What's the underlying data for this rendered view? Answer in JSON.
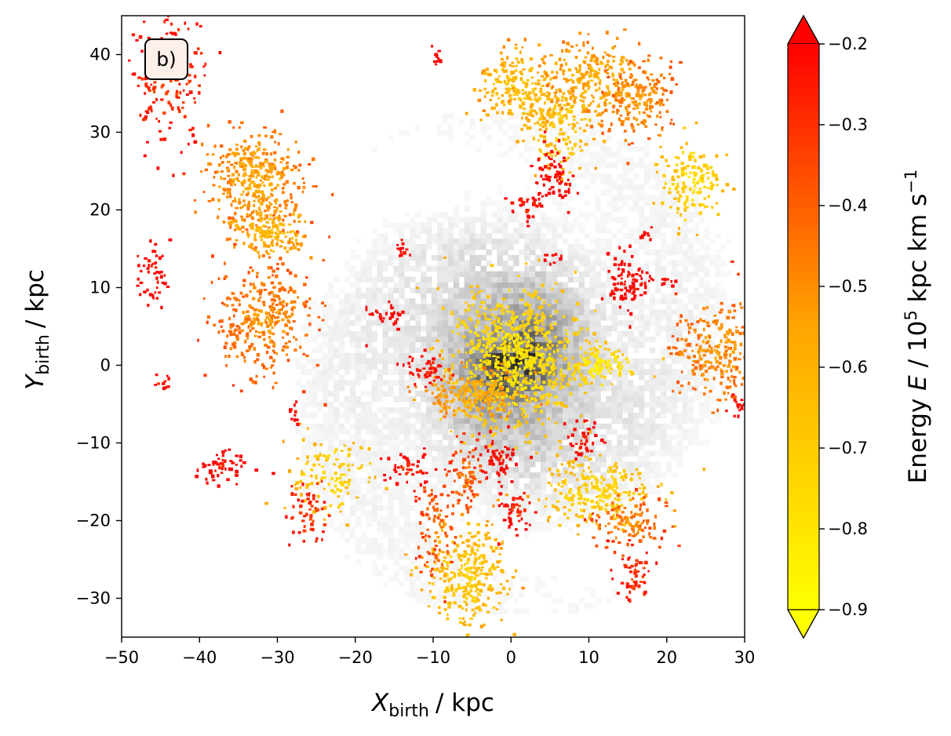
{
  "chart_data": {
    "type": "heatmap",
    "title": "",
    "panel_label": "b)",
    "xlabel": {
      "symbol": "X",
      "subscript": "birth",
      "unit": "/ kpc"
    },
    "ylabel": {
      "symbol": "Y",
      "subscript": "birth",
      "unit": "/ kpc"
    },
    "xlim": [
      -50,
      30
    ],
    "ylim": [
      -35,
      45
    ],
    "x_ticks": [
      -50,
      -40,
      -30,
      -20,
      -10,
      0,
      10,
      20,
      30
    ],
    "x_tick_labels": [
      "−50",
      "−40",
      "−30",
      "−20",
      "−10",
      "0",
      "10",
      "20",
      "30"
    ],
    "y_ticks": [
      -30,
      -20,
      -10,
      0,
      10,
      20,
      30,
      40
    ],
    "y_tick_labels": [
      "−30",
      "−20",
      "−10",
      "0",
      "10",
      "20",
      "30",
      "40"
    ],
    "grid": false,
    "background_density": {
      "colormap": "greys",
      "center": [
        0,
        0
      ]
    },
    "colorbar": {
      "label": {
        "prefix": "Energy ",
        "symbol": "E",
        "middle": " / 10",
        "exp1": "5",
        "mid2": " kpc km s",
        "exp2": "−1"
      },
      "range": [
        -0.9,
        -0.2
      ],
      "extend": "both",
      "ticks": [
        -0.9,
        -0.8,
        -0.7,
        -0.6,
        -0.5,
        -0.4,
        -0.3,
        -0.2
      ],
      "tick_labels": [
        "−0.9",
        "−0.8",
        "−0.7",
        "−0.6",
        "−0.5",
        "−0.4",
        "−0.3",
        "−0.2"
      ],
      "colors": {
        "low": "#ffff00",
        "mid": "#ffa500",
        "high": "#ff0000"
      }
    },
    "clumps": [
      {
        "x": 0,
        "y": 1,
        "sx": 4.2,
        "sy": 4.6,
        "e": -0.82,
        "n": 750
      },
      {
        "x": -5,
        "y": -3.5,
        "sx": 3.2,
        "sy": 1.6,
        "e": -0.62,
        "n": 200
      },
      {
        "x": -11,
        "y": -0.5,
        "sx": 1.4,
        "sy": 1.0,
        "e": -0.3,
        "n": 45
      },
      {
        "x": 11,
        "y": 0,
        "sx": 2.2,
        "sy": 1.3,
        "e": -0.85,
        "n": 120
      },
      {
        "x": -33,
        "y": 24,
        "sx": 3.0,
        "sy": 3.2,
        "e": -0.58,
        "n": 360
      },
      {
        "x": -31,
        "y": 17.5,
        "sx": 2.6,
        "sy": 1.5,
        "e": -0.65,
        "n": 170
      },
      {
        "x": -32,
        "y": 6,
        "sx": 3.1,
        "sy": 3.6,
        "e": -0.52,
        "n": 330
      },
      {
        "x": -44,
        "y": 37,
        "sx": 2.4,
        "sy": 4.2,
        "e": -0.35,
        "n": 160
      },
      {
        "x": -46,
        "y": 12,
        "sx": 1.0,
        "sy": 2.0,
        "e": -0.25,
        "n": 50
      },
      {
        "x": -37.5,
        "y": -13,
        "sx": 1.6,
        "sy": 1.1,
        "e": -0.25,
        "n": 55
      },
      {
        "x": -23,
        "y": -14,
        "sx": 2.6,
        "sy": 2.4,
        "e": -0.75,
        "n": 120
      },
      {
        "x": -26,
        "y": -19,
        "sx": 1.4,
        "sy": 2.5,
        "e": -0.35,
        "n": 55
      },
      {
        "x": -6,
        "y": -27,
        "sx": 2.6,
        "sy": 3.6,
        "e": -0.72,
        "n": 300
      },
      {
        "x": -10,
        "y": -21,
        "sx": 1.2,
        "sy": 3.0,
        "e": -0.45,
        "n": 80
      },
      {
        "x": -13.5,
        "y": -13,
        "sx": 1.5,
        "sy": 1.0,
        "e": -0.3,
        "n": 45
      },
      {
        "x": -6,
        "y": -14,
        "sx": 1.1,
        "sy": 2.6,
        "e": -0.45,
        "n": 70
      },
      {
        "x": -2,
        "y": -12,
        "sx": 1.2,
        "sy": 1.6,
        "e": -0.25,
        "n": 60
      },
      {
        "x": 1,
        "y": 36,
        "sx": 3.0,
        "sy": 2.4,
        "e": -0.68,
        "n": 220
      },
      {
        "x": 6,
        "y": 31,
        "sx": 2.6,
        "sy": 3.0,
        "e": -0.7,
        "n": 190
      },
      {
        "x": 11,
        "y": 37,
        "sx": 3.0,
        "sy": 2.5,
        "e": -0.62,
        "n": 230
      },
      {
        "x": 16,
        "y": 34,
        "sx": 2.2,
        "sy": 2.6,
        "e": -0.55,
        "n": 170
      },
      {
        "x": 23,
        "y": 24,
        "sx": 1.9,
        "sy": 2.7,
        "e": -0.78,
        "n": 150
      },
      {
        "x": 26,
        "y": 2,
        "sx": 2.5,
        "sy": 3.0,
        "e": -0.55,
        "n": 230
      },
      {
        "x": 15,
        "y": 11,
        "sx": 1.4,
        "sy": 1.9,
        "e": -0.25,
        "n": 90
      },
      {
        "x": 5.5,
        "y": 24.5,
        "sx": 1.3,
        "sy": 1.8,
        "e": -0.25,
        "n": 70
      },
      {
        "x": 11,
        "y": -16,
        "sx": 3.6,
        "sy": 2.2,
        "e": -0.75,
        "n": 240
      },
      {
        "x": 15,
        "y": -20,
        "sx": 2.0,
        "sy": 1.8,
        "e": -0.5,
        "n": 110
      },
      {
        "x": 15.5,
        "y": -27,
        "sx": 1.2,
        "sy": 1.8,
        "e": -0.35,
        "n": 55
      },
      {
        "x": 0.5,
        "y": -18.5,
        "sx": 1.0,
        "sy": 1.6,
        "e": -0.3,
        "n": 45
      },
      {
        "x": 9,
        "y": -9.5,
        "sx": 1.1,
        "sy": 1.3,
        "e": -0.25,
        "n": 35
      },
      {
        "x": -16,
        "y": 6.5,
        "sx": 1.2,
        "sy": 0.8,
        "e": -0.25,
        "n": 30
      },
      {
        "x": 2,
        "y": 20.5,
        "sx": 1.2,
        "sy": 1.0,
        "e": -0.3,
        "n": 30
      },
      {
        "x": -10,
        "y": 40,
        "sx": 0.6,
        "sy": 0.5,
        "e": -0.25,
        "n": 12
      },
      {
        "x": -14,
        "y": 15,
        "sx": 0.7,
        "sy": 0.5,
        "e": -0.25,
        "n": 12
      },
      {
        "x": 5,
        "y": 14,
        "sx": 0.6,
        "sy": 0.5,
        "e": -0.25,
        "n": 10
      },
      {
        "x": 29,
        "y": -5,
        "sx": 0.6,
        "sy": 0.8,
        "e": -0.25,
        "n": 14
      },
      {
        "x": -45,
        "y": -2,
        "sx": 0.5,
        "sy": 0.6,
        "e": -0.3,
        "n": 10
      },
      {
        "x": -28,
        "y": -6,
        "sx": 0.5,
        "sy": 0.6,
        "e": -0.25,
        "n": 10
      },
      {
        "x": 20,
        "y": 11,
        "sx": 0.5,
        "sy": 0.6,
        "e": -0.25,
        "n": 8
      },
      {
        "x": 17.5,
        "y": 17,
        "sx": 0.4,
        "sy": 0.5,
        "e": -0.25,
        "n": 8
      }
    ]
  }
}
